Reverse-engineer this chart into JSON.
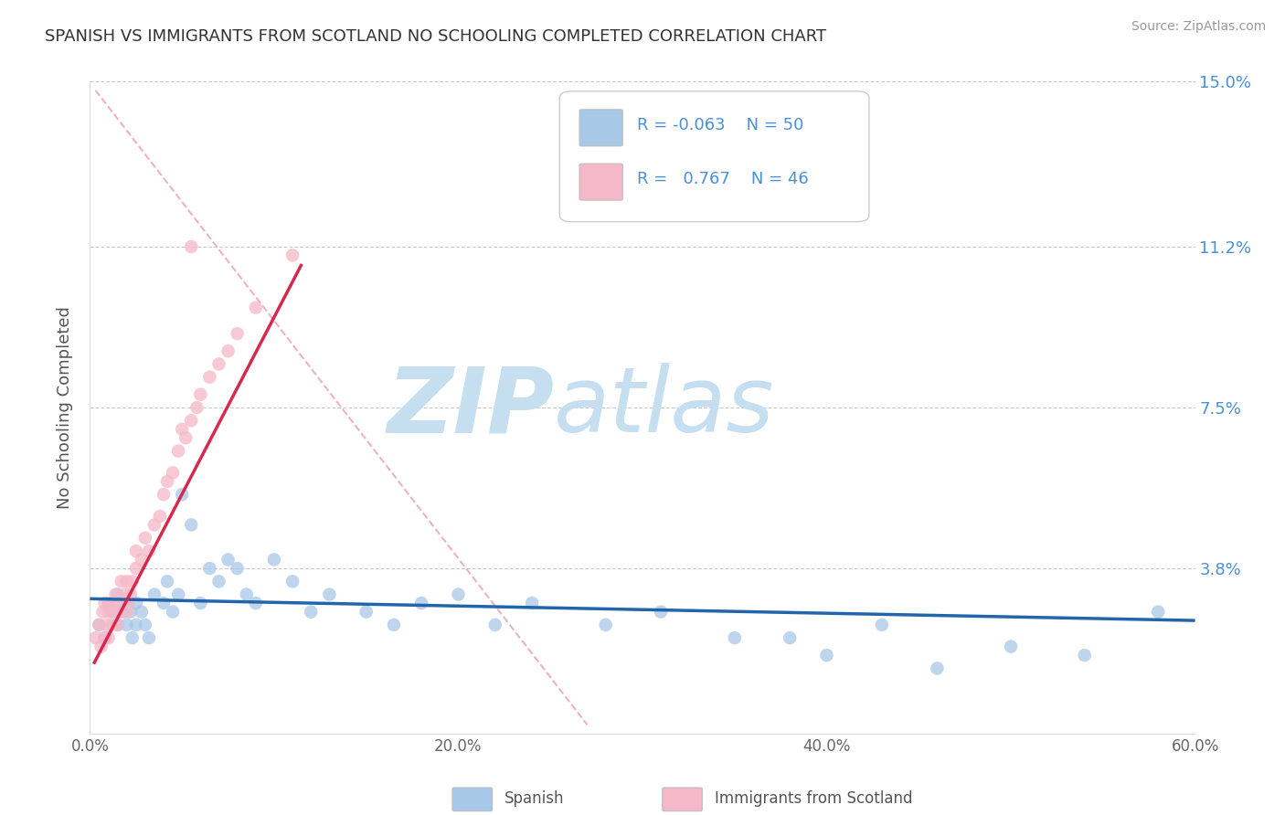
{
  "title": "SPANISH VS IMMIGRANTS FROM SCOTLAND NO SCHOOLING COMPLETED CORRELATION CHART",
  "source": "Source: ZipAtlas.com",
  "ylabel_label": "No Schooling Completed",
  "xlabel_legend": "Spanish",
  "ylabel_legend": "Immigrants from Scotland",
  "xlim": [
    0.0,
    0.6
  ],
  "ylim": [
    0.0,
    0.15
  ],
  "xticks": [
    0.0,
    0.1,
    0.2,
    0.3,
    0.4,
    0.5,
    0.6
  ],
  "xticklabels": [
    "0.0%",
    "",
    "20.0%",
    "",
    "40.0%",
    "",
    "60.0%"
  ],
  "yticks": [
    0.0,
    0.038,
    0.075,
    0.112,
    0.15
  ],
  "yticklabels": [
    "",
    "3.8%",
    "7.5%",
    "11.2%",
    "15.0%"
  ],
  "blue_R": "-0.063",
  "blue_N": "50",
  "pink_R": "0.767",
  "pink_N": "46",
  "blue_color": "#a8c8e8",
  "pink_color": "#f5b8c8",
  "blue_line_color": "#2166ac",
  "pink_line_color": "#d6294e",
  "dash_line_color": "#e8a0b0",
  "watermark_zip_color": "#c8dff0",
  "watermark_atlas_color": "#c8dff0",
  "background_color": "#ffffff",
  "grid_color": "#cccccc",
  "blue_scatter_x": [
    0.005,
    0.008,
    0.01,
    0.012,
    0.015,
    0.015,
    0.018,
    0.02,
    0.02,
    0.022,
    0.023,
    0.025,
    0.025,
    0.028,
    0.03,
    0.032,
    0.035,
    0.04,
    0.042,
    0.045,
    0.048,
    0.05,
    0.055,
    0.06,
    0.065,
    0.07,
    0.075,
    0.08,
    0.085,
    0.09,
    0.1,
    0.11,
    0.12,
    0.13,
    0.15,
    0.165,
    0.18,
    0.2,
    0.22,
    0.24,
    0.28,
    0.31,
    0.35,
    0.38,
    0.4,
    0.43,
    0.46,
    0.5,
    0.54,
    0.58
  ],
  "blue_scatter_y": [
    0.025,
    0.022,
    0.03,
    0.028,
    0.025,
    0.032,
    0.028,
    0.025,
    0.03,
    0.028,
    0.022,
    0.03,
    0.025,
    0.028,
    0.025,
    0.022,
    0.032,
    0.03,
    0.035,
    0.028,
    0.032,
    0.055,
    0.048,
    0.03,
    0.038,
    0.035,
    0.04,
    0.038,
    0.032,
    0.03,
    0.04,
    0.035,
    0.028,
    0.032,
    0.028,
    0.025,
    0.03,
    0.032,
    0.025,
    0.03,
    0.025,
    0.028,
    0.022,
    0.022,
    0.018,
    0.025,
    0.015,
    0.02,
    0.018,
    0.028
  ],
  "pink_scatter_x": [
    0.003,
    0.005,
    0.006,
    0.007,
    0.008,
    0.008,
    0.009,
    0.01,
    0.01,
    0.012,
    0.012,
    0.013,
    0.014,
    0.015,
    0.015,
    0.016,
    0.017,
    0.018,
    0.019,
    0.02,
    0.02,
    0.021,
    0.022,
    0.023,
    0.025,
    0.025,
    0.028,
    0.03,
    0.032,
    0.035,
    0.038,
    0.04,
    0.042,
    0.045,
    0.048,
    0.05,
    0.052,
    0.055,
    0.058,
    0.06,
    0.065,
    0.07,
    0.075,
    0.08,
    0.09,
    0.11
  ],
  "pink_scatter_y": [
    0.022,
    0.025,
    0.02,
    0.028,
    0.022,
    0.03,
    0.025,
    0.022,
    0.028,
    0.025,
    0.03,
    0.028,
    0.032,
    0.025,
    0.03,
    0.028,
    0.035,
    0.03,
    0.032,
    0.028,
    0.035,
    0.03,
    0.032,
    0.035,
    0.038,
    0.042,
    0.04,
    0.045,
    0.042,
    0.048,
    0.05,
    0.055,
    0.058,
    0.06,
    0.065,
    0.07,
    0.068,
    0.072,
    0.075,
    0.078,
    0.082,
    0.085,
    0.088,
    0.092,
    0.098,
    0.11
  ],
  "pink_outlier_x": [
    0.055
  ],
  "pink_outlier_y": [
    0.112
  ],
  "blue_line_x": [
    0.0,
    0.6
  ],
  "blue_line_y": [
    0.031,
    0.026
  ],
  "pink_line_x": [
    0.002,
    0.115
  ],
  "pink_line_y": [
    0.016,
    0.108
  ],
  "dash_line_x": [
    0.003,
    0.27
  ],
  "dash_line_y": [
    0.148,
    0.002
  ]
}
